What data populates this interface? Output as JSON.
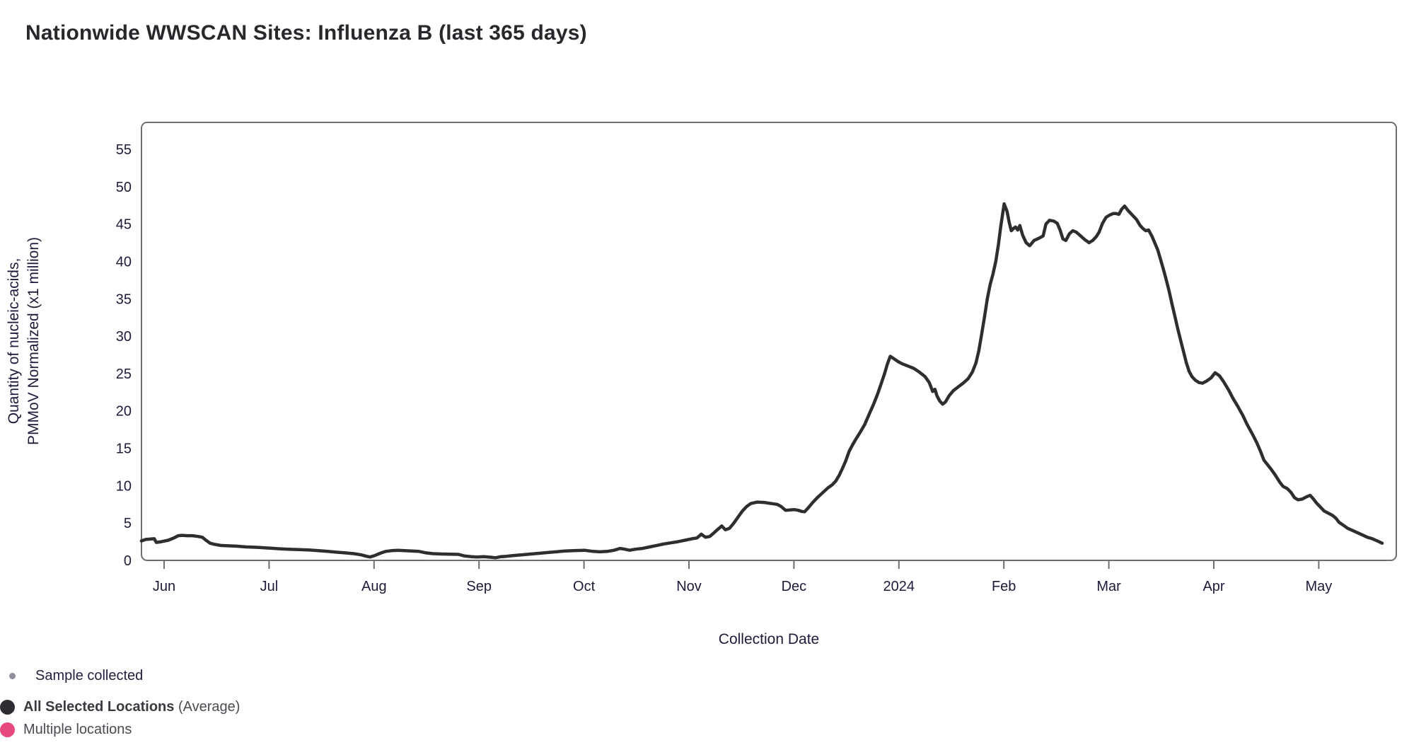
{
  "title": "Nationwide WWSCAN Sites: Influenza B (last 365 days)",
  "chart_data": {
    "type": "line",
    "title": "Nationwide WWSCAN Sites: Influenza B (last 365 days)",
    "xlabel": "Collection Date",
    "ylabel_line1": "Quantity of nucleic-acids,",
    "ylabel_line2": "PMMoV Normalized (x1 million)",
    "x_tick_labels": [
      "Jun",
      "Jul",
      "Aug",
      "Sep",
      "Oct",
      "Nov",
      "Dec",
      "2024",
      "Feb",
      "Mar",
      "Apr",
      "May"
    ],
    "y_ticks": [
      0,
      5,
      10,
      15,
      20,
      25,
      30,
      35,
      40,
      45,
      50,
      55
    ],
    "xlim_months": [
      -0.22,
      11.74
    ],
    "ylim": [
      0,
      58.6
    ],
    "grid": false,
    "legend_position": "bottom-left",
    "series": [
      {
        "name": "All Selected Locations (Average)",
        "color": "#2e2e2e",
        "points": [
          [
            -0.216,
            2.6
          ],
          [
            -0.175,
            2.8
          ],
          [
            -0.135,
            2.85
          ],
          [
            -0.094,
            2.9
          ],
          [
            -0.074,
            2.4
          ],
          [
            -0.027,
            2.5
          ],
          [
            0.04,
            2.7
          ],
          [
            0.094,
            3.0
          ],
          [
            0.135,
            3.3
          ],
          [
            0.175,
            3.35
          ],
          [
            0.216,
            3.3
          ],
          [
            0.27,
            3.3
          ],
          [
            0.324,
            3.2
          ],
          [
            0.364,
            3.1
          ],
          [
            0.398,
            2.7
          ],
          [
            0.438,
            2.3
          ],
          [
            0.479,
            2.15
          ],
          [
            0.539,
            2.0
          ],
          [
            0.607,
            1.95
          ],
          [
            0.688,
            1.9
          ],
          [
            0.782,
            1.8
          ],
          [
            0.877,
            1.75
          ],
          [
            0.998,
            1.65
          ],
          [
            1.099,
            1.55
          ],
          [
            1.187,
            1.5
          ],
          [
            1.281,
            1.45
          ],
          [
            1.376,
            1.4
          ],
          [
            1.47,
            1.3
          ],
          [
            1.558,
            1.2
          ],
          [
            1.639,
            1.1
          ],
          [
            1.726,
            1.0
          ],
          [
            1.807,
            0.9
          ],
          [
            1.875,
            0.75
          ],
          [
            1.928,
            0.55
          ],
          [
            1.962,
            0.45
          ],
          [
            2.009,
            0.65
          ],
          [
            2.057,
            0.95
          ],
          [
            2.111,
            1.2
          ],
          [
            2.164,
            1.3
          ],
          [
            2.225,
            1.35
          ],
          [
            2.293,
            1.3
          ],
          [
            2.36,
            1.25
          ],
          [
            2.428,
            1.2
          ],
          [
            2.495,
            1.0
          ],
          [
            2.562,
            0.9
          ],
          [
            2.643,
            0.85
          ],
          [
            2.724,
            0.82
          ],
          [
            2.805,
            0.8
          ],
          [
            2.859,
            0.6
          ],
          [
            2.926,
            0.5
          ],
          [
            2.98,
            0.45
          ],
          [
            3.048,
            0.5
          ],
          [
            3.115,
            0.42
          ],
          [
            3.156,
            0.35
          ],
          [
            3.21,
            0.5
          ],
          [
            3.263,
            0.55
          ],
          [
            3.331,
            0.65
          ],
          [
            3.412,
            0.75
          ],
          [
            3.493,
            0.85
          ],
          [
            3.573,
            0.95
          ],
          [
            3.654,
            1.05
          ],
          [
            3.735,
            1.15
          ],
          [
            3.816,
            1.25
          ],
          [
            3.897,
            1.3
          ],
          [
            4.005,
            1.35
          ],
          [
            4.086,
            1.2
          ],
          [
            4.153,
            1.15
          ],
          [
            4.221,
            1.2
          ],
          [
            4.288,
            1.35
          ],
          [
            4.342,
            1.6
          ],
          [
            4.389,
            1.5
          ],
          [
            4.436,
            1.35
          ],
          [
            4.49,
            1.5
          ],
          [
            4.558,
            1.6
          ],
          [
            4.625,
            1.8
          ],
          [
            4.693,
            2.0
          ],
          [
            4.76,
            2.2
          ],
          [
            4.828,
            2.35
          ],
          [
            4.895,
            2.5
          ],
          [
            4.962,
            2.7
          ],
          [
            5.03,
            2.9
          ],
          [
            5.077,
            3.0
          ],
          [
            5.117,
            3.5
          ],
          [
            5.158,
            3.1
          ],
          [
            5.198,
            3.2
          ],
          [
            5.239,
            3.7
          ],
          [
            5.279,
            4.2
          ],
          [
            5.313,
            4.6
          ],
          [
            5.347,
            4.1
          ],
          [
            5.387,
            4.3
          ],
          [
            5.428,
            5.0
          ],
          [
            5.468,
            5.8
          ],
          [
            5.509,
            6.6
          ],
          [
            5.549,
            7.2
          ],
          [
            5.589,
            7.6
          ],
          [
            5.65,
            7.8
          ],
          [
            5.717,
            7.75
          ],
          [
            5.785,
            7.6
          ],
          [
            5.839,
            7.5
          ],
          [
            5.879,
            7.2
          ],
          [
            5.92,
            6.7
          ],
          [
            5.96,
            6.75
          ],
          [
            6.001,
            6.8
          ],
          [
            6.041,
            6.7
          ],
          [
            6.075,
            6.55
          ],
          [
            6.102,
            6.5
          ],
          [
            6.135,
            7.0
          ],
          [
            6.176,
            7.7
          ],
          [
            6.223,
            8.4
          ],
          [
            6.27,
            9.0
          ],
          [
            6.324,
            9.7
          ],
          [
            6.364,
            10.1
          ],
          [
            6.398,
            10.6
          ],
          [
            6.432,
            11.4
          ],
          [
            6.459,
            12.2
          ],
          [
            6.493,
            13.3
          ],
          [
            6.526,
            14.6
          ],
          [
            6.56,
            15.5
          ],
          [
            6.594,
            16.3
          ],
          [
            6.634,
            17.2
          ],
          [
            6.675,
            18.2
          ],
          [
            6.715,
            19.5
          ],
          [
            6.756,
            20.8
          ],
          [
            6.796,
            22.2
          ],
          [
            6.83,
            23.6
          ],
          [
            6.864,
            25.0
          ],
          [
            6.891,
            26.3
          ],
          [
            6.918,
            27.3
          ],
          [
            6.951,
            27.0
          ],
          [
            6.992,
            26.6
          ],
          [
            7.032,
            26.3
          ],
          [
            7.086,
            26.0
          ],
          [
            7.14,
            25.7
          ],
          [
            7.194,
            25.2
          ],
          [
            7.248,
            24.6
          ],
          [
            7.289,
            23.8
          ],
          [
            7.322,
            22.6
          ],
          [
            7.343,
            22.9
          ],
          [
            7.363,
            22.0
          ],
          [
            7.39,
            21.3
          ],
          [
            7.417,
            20.9
          ],
          [
            7.444,
            21.2
          ],
          [
            7.477,
            22.0
          ],
          [
            7.518,
            22.7
          ],
          [
            7.565,
            23.2
          ],
          [
            7.612,
            23.7
          ],
          [
            7.659,
            24.3
          ],
          [
            7.7,
            25.2
          ],
          [
            7.734,
            26.4
          ],
          [
            7.761,
            28.0
          ],
          [
            7.788,
            30.2
          ],
          [
            7.815,
            32.5
          ],
          [
            7.842,
            35.0
          ],
          [
            7.869,
            36.9
          ],
          [
            7.896,
            38.3
          ],
          [
            7.923,
            40.0
          ],
          [
            7.949,
            42.3
          ],
          [
            7.97,
            44.6
          ],
          [
            7.99,
            46.5
          ],
          [
            8.003,
            47.7
          ],
          [
            8.03,
            46.7
          ],
          [
            8.051,
            45.2
          ],
          [
            8.071,
            44.1
          ],
          [
            8.091,
            44.4
          ],
          [
            8.111,
            44.6
          ],
          [
            8.132,
            44.2
          ],
          [
            8.152,
            44.8
          ],
          [
            8.179,
            43.5
          ],
          [
            8.212,
            42.5
          ],
          [
            8.246,
            42.1
          ],
          [
            8.287,
            42.8
          ],
          [
            8.334,
            43.1
          ],
          [
            8.374,
            43.4
          ],
          [
            8.401,
            45.0
          ],
          [
            8.435,
            45.5
          ],
          [
            8.475,
            45.4
          ],
          [
            8.509,
            45.1
          ],
          [
            8.536,
            44.2
          ],
          [
            8.563,
            43.0
          ],
          [
            8.59,
            42.8
          ],
          [
            8.624,
            43.7
          ],
          [
            8.657,
            44.1
          ],
          [
            8.691,
            43.9
          ],
          [
            8.732,
            43.4
          ],
          [
            8.772,
            42.9
          ],
          [
            8.812,
            42.5
          ],
          [
            8.846,
            42.8
          ],
          [
            8.88,
            43.3
          ],
          [
            8.907,
            43.9
          ],
          [
            8.94,
            45.1
          ],
          [
            8.974,
            45.9
          ],
          [
            9.008,
            46.2
          ],
          [
            9.042,
            46.4
          ],
          [
            9.069,
            46.4
          ],
          [
            9.096,
            46.3
          ],
          [
            9.123,
            47.0
          ],
          [
            9.15,
            47.4
          ],
          [
            9.183,
            46.8
          ],
          [
            9.224,
            46.2
          ],
          [
            9.264,
            45.6
          ],
          [
            9.298,
            44.8
          ],
          [
            9.325,
            44.4
          ],
          [
            9.352,
            44.1
          ],
          [
            9.379,
            44.2
          ],
          [
            9.413,
            43.3
          ],
          [
            9.446,
            42.2
          ],
          [
            9.467,
            41.5
          ],
          [
            9.494,
            40.2
          ],
          [
            9.521,
            38.9
          ],
          [
            9.548,
            37.5
          ],
          [
            9.575,
            36.0
          ],
          [
            9.602,
            34.3
          ],
          [
            9.629,
            32.7
          ],
          [
            9.656,
            31.0
          ],
          [
            9.683,
            29.5
          ],
          [
            9.71,
            28.0
          ],
          [
            9.737,
            26.5
          ],
          [
            9.764,
            25.3
          ],
          [
            9.791,
            24.6
          ],
          [
            9.824,
            24.1
          ],
          [
            9.858,
            23.8
          ],
          [
            9.892,
            23.7
          ],
          [
            9.932,
            24.0
          ],
          [
            9.973,
            24.4
          ],
          [
            10.013,
            25.1
          ],
          [
            10.054,
            24.7
          ],
          [
            10.094,
            23.9
          ],
          [
            10.141,
            22.8
          ],
          [
            10.182,
            21.7
          ],
          [
            10.229,
            20.6
          ],
          [
            10.276,
            19.4
          ],
          [
            10.317,
            18.2
          ],
          [
            10.364,
            17.0
          ],
          [
            10.411,
            15.7
          ],
          [
            10.445,
            14.6
          ],
          [
            10.478,
            13.4
          ],
          [
            10.512,
            12.8
          ],
          [
            10.546,
            12.2
          ],
          [
            10.586,
            11.4
          ],
          [
            10.627,
            10.5
          ],
          [
            10.66,
            9.9
          ],
          [
            10.701,
            9.6
          ],
          [
            10.735,
            9.1
          ],
          [
            10.768,
            8.4
          ],
          [
            10.802,
            8.1
          ],
          [
            10.842,
            8.2
          ],
          [
            10.883,
            8.5
          ],
          [
            10.917,
            8.7
          ],
          [
            10.944,
            8.3
          ],
          [
            10.977,
            7.7
          ],
          [
            11.011,
            7.2
          ],
          [
            11.052,
            6.6
          ],
          [
            11.092,
            6.3
          ],
          [
            11.133,
            6.0
          ],
          [
            11.166,
            5.6
          ],
          [
            11.193,
            5.1
          ],
          [
            11.234,
            4.7
          ],
          [
            11.274,
            4.3
          ],
          [
            11.321,
            4.0
          ],
          [
            11.369,
            3.7
          ],
          [
            11.416,
            3.4
          ],
          [
            11.463,
            3.1
          ],
          [
            11.51,
            2.9
          ],
          [
            11.557,
            2.6
          ],
          [
            11.604,
            2.3
          ]
        ]
      }
    ]
  },
  "legend": {
    "sample": {
      "label": "Sample collected",
      "dot_color": "#8e8e9c"
    },
    "avg": {
      "label_bold": "All Selected Locations",
      "label_suffix": " (Average)",
      "dot_color": "#2d2d33"
    },
    "multiple": {
      "label": "Multiple locations",
      "dot_color": "#e8497d"
    }
  },
  "colors": {
    "line": "#2e2e2e",
    "plot_border": "#6e6e73",
    "axis_text": "#1c1c3a",
    "title_text": "#28282c"
  }
}
